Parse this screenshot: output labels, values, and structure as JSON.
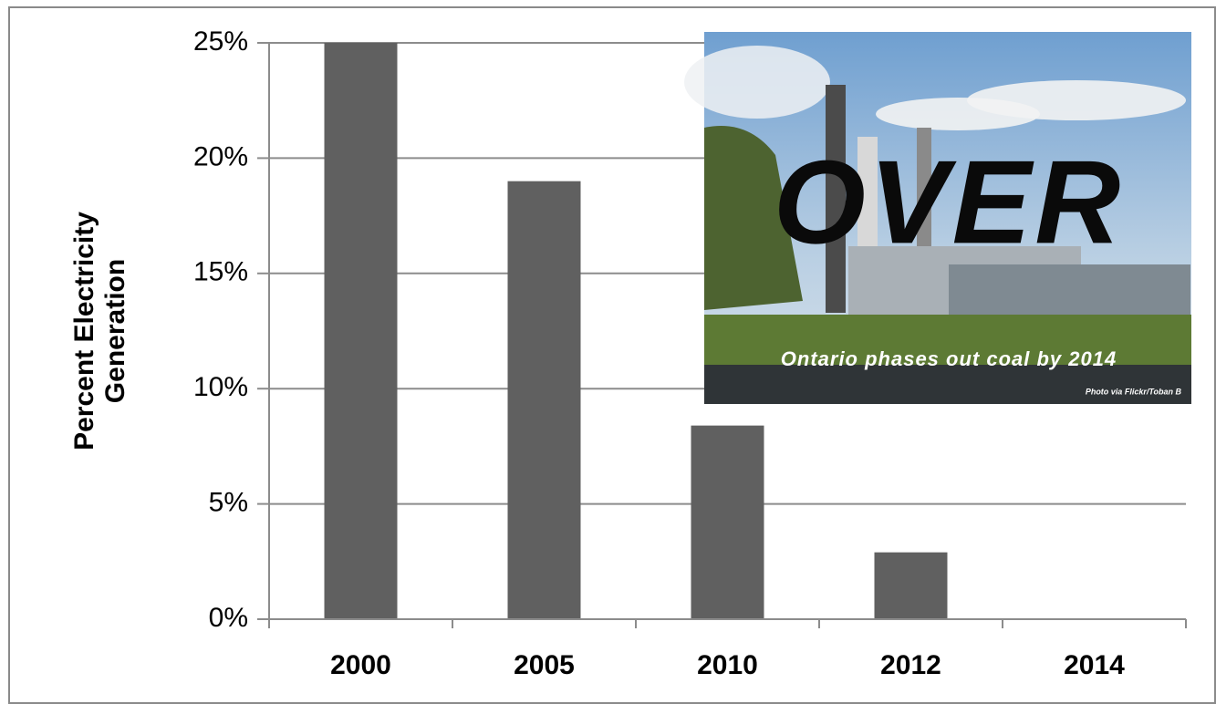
{
  "chart_data": {
    "type": "bar",
    "y_label": "Percent Electricity Generation",
    "categories": [
      "2000",
      "2005",
      "2010",
      "2012",
      "2014"
    ],
    "values": [
      25,
      19,
      8.4,
      2.9,
      0
    ],
    "color": "#606060",
    "ylim": [
      0,
      25
    ],
    "yticks": [
      {
        "value": 0,
        "label": "0%"
      },
      {
        "value": 5,
        "label": "5%"
      },
      {
        "value": 10,
        "label": "10%"
      },
      {
        "value": 15,
        "label": "15%"
      },
      {
        "value": 20,
        "label": "20%"
      },
      {
        "value": 25,
        "label": "25%"
      }
    ],
    "grid": true,
    "inset": {
      "headline": "OVER",
      "caption": "Ontario phases out coal by 2014",
      "credit": "Photo via Flickr/Toban B"
    }
  }
}
